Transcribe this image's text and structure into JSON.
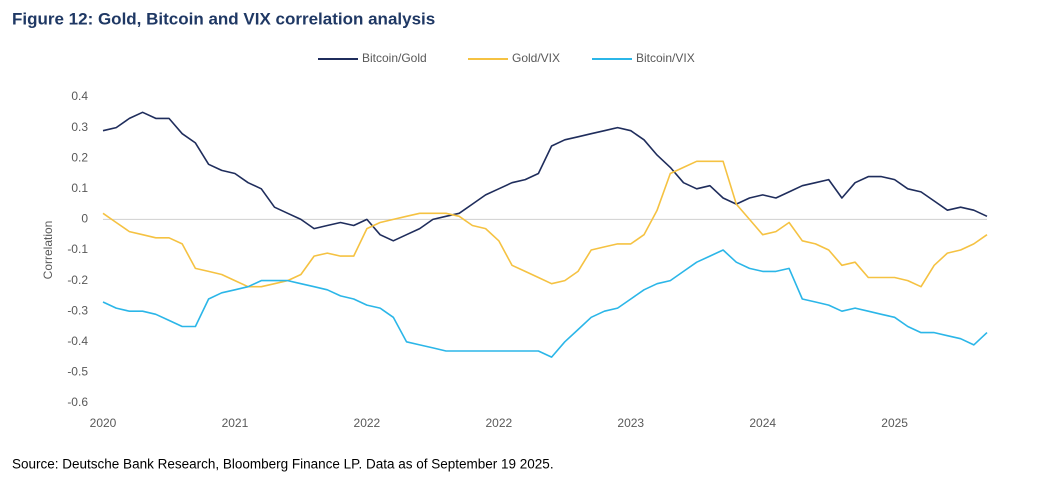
{
  "chart_data": {
    "type": "line",
    "title": "Figure 12: Gold, Bitcoin and VIX correlation analysis",
    "y_label": "Correlation",
    "source": "Source: Deutsche Bank Research, Bloomberg Finance LP. Data as of September 19 2025.",
    "categories": [
      "2020",
      null,
      null,
      null,
      null,
      null,
      null,
      null,
      null,
      null,
      "2021",
      null,
      null,
      null,
      null,
      null,
      null,
      null,
      null,
      null,
      "2022",
      null,
      null,
      null,
      null,
      null,
      null,
      null,
      null,
      null,
      "2022",
      null,
      null,
      null,
      null,
      null,
      null,
      null,
      null,
      null,
      "2023",
      null,
      null,
      null,
      null,
      null,
      null,
      null,
      null,
      null,
      "2024",
      null,
      null,
      null,
      null,
      null,
      null,
      null,
      null,
      null,
      "2025",
      null,
      null,
      null,
      null,
      null,
      null,
      null
    ],
    "ylim": [
      -0.6,
      0.4
    ],
    "yticks": [
      -0.6,
      -0.5,
      -0.4,
      -0.3,
      -0.2,
      -0.1,
      0,
      0.1,
      0.2,
      0.3,
      0.4
    ],
    "zero_line": true,
    "legend": "top",
    "series": [
      {
        "name": "Bitcoin/Gold",
        "color": "#1f2d5c",
        "values": [
          0.29,
          0.3,
          0.33,
          0.35,
          0.33,
          0.33,
          0.28,
          0.25,
          0.18,
          0.16,
          0.15,
          0.12,
          0.1,
          0.04,
          0.02,
          0.0,
          -0.03,
          -0.02,
          -0.01,
          -0.02,
          0.0,
          -0.05,
          -0.07,
          -0.05,
          -0.03,
          0.0,
          0.01,
          0.02,
          0.05,
          0.08,
          0.1,
          0.12,
          0.13,
          0.15,
          0.24,
          0.26,
          0.27,
          0.28,
          0.29,
          0.3,
          0.29,
          0.26,
          0.21,
          0.17,
          0.12,
          0.1,
          0.11,
          0.07,
          0.05,
          0.07,
          0.08,
          0.07,
          0.09,
          0.11,
          0.12,
          0.13,
          0.07,
          0.12,
          0.14,
          0.14,
          0.13,
          0.1,
          0.09,
          0.06,
          0.03,
          0.04,
          0.03,
          0.01
        ]
      },
      {
        "name": "Gold/VIX",
        "color": "#f5c242",
        "values": [
          0.02,
          -0.01,
          -0.04,
          -0.05,
          -0.06,
          -0.06,
          -0.08,
          -0.16,
          -0.17,
          -0.18,
          -0.2,
          -0.22,
          -0.22,
          -0.21,
          -0.2,
          -0.18,
          -0.12,
          -0.11,
          -0.12,
          -0.12,
          -0.03,
          -0.01,
          0.0,
          0.01,
          0.02,
          0.02,
          0.02,
          0.01,
          -0.02,
          -0.03,
          -0.07,
          -0.15,
          -0.17,
          -0.19,
          -0.21,
          -0.2,
          -0.17,
          -0.1,
          -0.09,
          -0.08,
          -0.08,
          -0.05,
          0.03,
          0.15,
          0.17,
          0.19,
          0.19,
          0.19,
          0.05,
          0.0,
          -0.05,
          -0.04,
          -0.01,
          -0.07,
          -0.08,
          -0.1,
          -0.15,
          -0.14,
          -0.19,
          -0.19,
          -0.19,
          -0.2,
          -0.22,
          -0.15,
          -0.11,
          -0.1,
          -0.08,
          -0.05
        ]
      },
      {
        "name": "Bitcoin/VIX",
        "color": "#2bb6e8",
        "values": [
          -0.27,
          -0.29,
          -0.3,
          -0.3,
          -0.31,
          -0.33,
          -0.35,
          -0.35,
          -0.26,
          -0.24,
          -0.23,
          -0.22,
          -0.2,
          -0.2,
          -0.2,
          -0.21,
          -0.22,
          -0.23,
          -0.25,
          -0.26,
          -0.28,
          -0.29,
          -0.32,
          -0.4,
          -0.41,
          -0.42,
          -0.43,
          -0.43,
          -0.43,
          -0.43,
          -0.43,
          -0.43,
          -0.43,
          -0.43,
          -0.45,
          -0.4,
          -0.36,
          -0.32,
          -0.3,
          -0.29,
          -0.26,
          -0.23,
          -0.21,
          -0.2,
          -0.17,
          -0.14,
          -0.12,
          -0.1,
          -0.14,
          -0.16,
          -0.17,
          -0.17,
          -0.16,
          -0.26,
          -0.27,
          -0.28,
          -0.3,
          -0.29,
          -0.3,
          -0.31,
          -0.32,
          -0.35,
          -0.37,
          -0.37,
          -0.38,
          -0.39,
          -0.41,
          -0.37
        ]
      }
    ]
  }
}
